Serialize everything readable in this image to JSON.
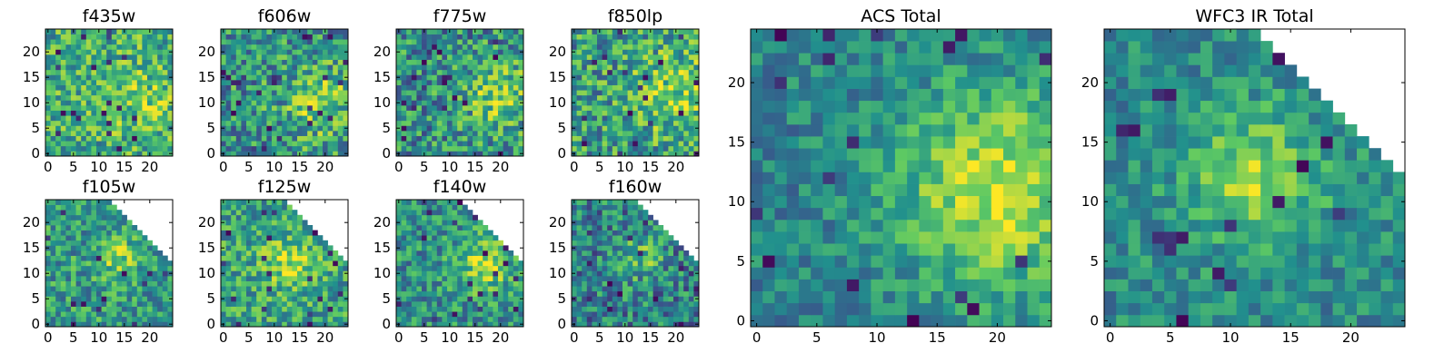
{
  "chart_data": {
    "type": "heatmap",
    "colormap": [
      "#440154",
      "#3b528b",
      "#21908d",
      "#5dc963",
      "#fde725"
    ],
    "panels": [
      {
        "title": "f435w",
        "xlim": [
          0,
          25
        ],
        "ylim": [
          0,
          25
        ],
        "xticks": [
          0,
          5,
          10,
          15,
          20
        ],
        "yticks": [
          0,
          5,
          10,
          15,
          20
        ],
        "mask": "none",
        "seed": 11,
        "noise": 0.55,
        "base": 0.62,
        "hot": {
          "x": 18,
          "y": 11,
          "r": 5,
          "a": 0.15
        }
      },
      {
        "title": "f606w",
        "xlim": [
          0,
          25
        ],
        "ylim": [
          0,
          25
        ],
        "xticks": [
          0,
          5,
          10,
          15,
          20
        ],
        "yticks": [
          0,
          5,
          10,
          15,
          20
        ],
        "mask": "none",
        "seed": 23,
        "noise": 0.6,
        "base": 0.52,
        "hot": {
          "x": 19,
          "y": 10,
          "r": 5,
          "a": 0.25
        }
      },
      {
        "title": "f775w",
        "xlim": [
          0,
          25
        ],
        "ylim": [
          0,
          25
        ],
        "xticks": [
          0,
          5,
          10,
          15,
          20
        ],
        "yticks": [
          0,
          5,
          10,
          15,
          20
        ],
        "mask": "none",
        "seed": 37,
        "noise": 0.6,
        "base": 0.5,
        "hot": {
          "x": 20,
          "y": 11,
          "r": 5,
          "a": 0.28
        }
      },
      {
        "title": "f850lp",
        "xlim": [
          0,
          25
        ],
        "ylim": [
          0,
          25
        ],
        "xticks": [
          0,
          5,
          10,
          15,
          20
        ],
        "yticks": [
          0,
          5,
          10,
          15,
          20
        ],
        "mask": "none",
        "seed": 41,
        "noise": 0.6,
        "base": 0.55,
        "hot": {
          "x": 20,
          "y": 12,
          "r": 6,
          "a": 0.25
        }
      },
      {
        "title": "f105w",
        "xlim": [
          0,
          25
        ],
        "ylim": [
          0,
          25
        ],
        "xticks": [
          0,
          5,
          10,
          15,
          20
        ],
        "yticks": [
          0,
          5,
          10,
          15,
          20
        ],
        "mask": "diagonal",
        "seed": 53,
        "noise": 0.5,
        "base": 0.55,
        "hot": {
          "x": 14,
          "y": 13,
          "r": 3,
          "a": 0.25
        }
      },
      {
        "title": "f125w",
        "xlim": [
          0,
          25
        ],
        "ylim": [
          0,
          25
        ],
        "xticks": [
          0,
          5,
          10,
          15,
          20
        ],
        "yticks": [
          0,
          5,
          10,
          15,
          20
        ],
        "mask": "diagonal",
        "seed": 67,
        "noise": 0.5,
        "base": 0.58,
        "hot": {
          "x": 13,
          "y": 12,
          "r": 4,
          "a": 0.25
        }
      },
      {
        "title": "f140w",
        "xlim": [
          0,
          25
        ],
        "ylim": [
          0,
          25
        ],
        "xticks": [
          0,
          5,
          10,
          15,
          20
        ],
        "yticks": [
          0,
          5,
          10,
          15,
          20
        ],
        "mask": "diagonal",
        "seed": 71,
        "noise": 0.5,
        "base": 0.5,
        "hot": {
          "x": 17,
          "y": 12,
          "r": 4,
          "a": 0.35
        }
      },
      {
        "title": "f160w",
        "xlim": [
          0,
          25
        ],
        "ylim": [
          0,
          25
        ],
        "xticks": [
          0,
          5,
          10,
          15,
          20
        ],
        "yticks": [
          0,
          5,
          10,
          15,
          20
        ],
        "mask": "diagonal",
        "seed": 83,
        "noise": 0.55,
        "base": 0.45,
        "hot": {
          "x": 13,
          "y": 13,
          "r": 3,
          "a": 0.25
        }
      },
      {
        "title": "ACS Total",
        "xlim": [
          0,
          25
        ],
        "ylim": [
          0,
          25
        ],
        "xticks": [
          0,
          5,
          10,
          15,
          20
        ],
        "yticks": [
          0,
          5,
          10,
          15,
          20
        ],
        "mask": "none",
        "seed": 97,
        "noise": 0.35,
        "base": 0.45,
        "hot": {
          "x": 20,
          "y": 11,
          "r": 6,
          "a": 0.45
        }
      },
      {
        "title": "WFC3 IR Total",
        "xlim": [
          0,
          25
        ],
        "ylim": [
          0,
          25
        ],
        "xticks": [
          0,
          5,
          10,
          15,
          20
        ],
        "yticks": [
          0,
          5,
          10,
          15,
          20
        ],
        "mask": "diagonal",
        "seed": 101,
        "noise": 0.35,
        "base": 0.48,
        "hot": {
          "x": 12,
          "y": 12,
          "r": 4,
          "a": 0.35
        }
      }
    ]
  }
}
